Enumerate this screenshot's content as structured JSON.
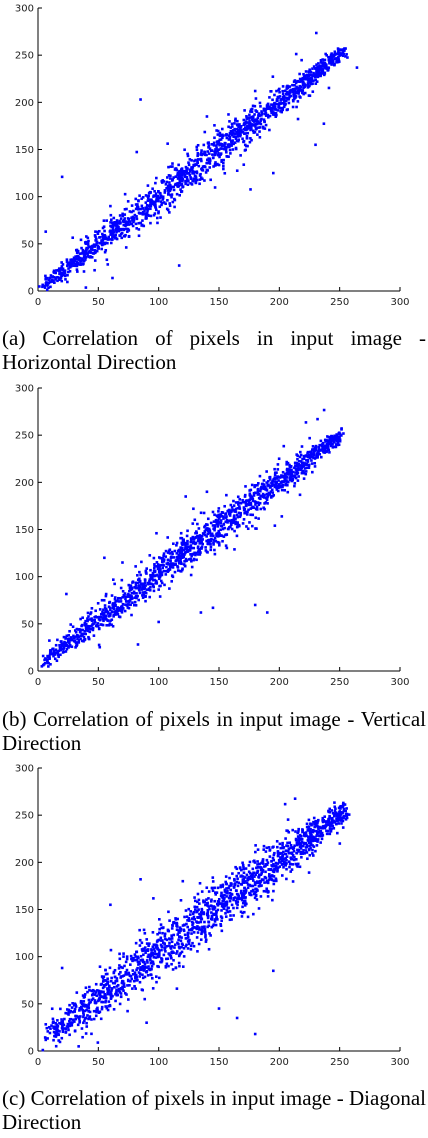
{
  "chart_data": [
    {
      "type": "scatter",
      "caption": "(a) Correlation of pixels in input image - Horizontal Direction",
      "xlim": [
        0,
        300
      ],
      "ylim": [
        0,
        300
      ],
      "x_ticks": [
        "0",
        "50",
        "100",
        "150",
        "200",
        "250",
        "300"
      ],
      "y_ticks": [
        "0",
        "50",
        "100",
        "150",
        "200",
        "250",
        "300"
      ],
      "grid": false,
      "marker_color": "#0000ff",
      "trend": {
        "from": [
          5,
          5
        ],
        "to": [
          255,
          255
        ]
      },
      "spread": 6,
      "outliers": [
        [
          85,
          203
        ],
        [
          20,
          121
        ],
        [
          117,
          27
        ],
        [
          195,
          125
        ],
        [
          230,
          155
        ],
        [
          180,
          212
        ],
        [
          60,
          90
        ],
        [
          140,
          185
        ]
      ],
      "n_points": 1400
    },
    {
      "type": "scatter",
      "caption": "(b) Correlation of pixels in input image - Vertical Direction",
      "xlim": [
        0,
        300
      ],
      "ylim": [
        0,
        300
      ],
      "x_ticks": [
        "0",
        "50",
        "100",
        "150",
        "200",
        "250",
        "300"
      ],
      "y_ticks": [
        "0",
        "50",
        "100",
        "150",
        "200",
        "250",
        "300"
      ],
      "grid": false,
      "marker_color": "#0000ff",
      "trend": {
        "from": [
          5,
          10
        ],
        "to": [
          250,
          250
        ]
      },
      "spread": 6,
      "outliers": [
        [
          145,
          67
        ],
        [
          180,
          70
        ],
        [
          190,
          62
        ],
        [
          100,
          52
        ],
        [
          135,
          62
        ],
        [
          55,
          120
        ],
        [
          70,
          115
        ],
        [
          140,
          190
        ]
      ],
      "n_points": 1400
    },
    {
      "type": "scatter",
      "caption": "(c) Correlation of pixels in input image - Diagonal Direction",
      "xlim": [
        0,
        300
      ],
      "ylim": [
        0,
        300
      ],
      "x_ticks": [
        "0",
        "50",
        "100",
        "150",
        "200",
        "250",
        "300"
      ],
      "y_ticks": [
        "0",
        "50",
        "100",
        "150",
        "200",
        "250",
        "300"
      ],
      "grid": false,
      "marker_color": "#0000ff",
      "trend": {
        "from": [
          8,
          15
        ],
        "to": [
          255,
          255
        ]
      },
      "spread": 9,
      "outliers": [
        [
          195,
          85
        ],
        [
          180,
          18
        ],
        [
          165,
          35
        ],
        [
          85,
          182
        ],
        [
          120,
          180
        ],
        [
          175,
          190
        ],
        [
          20,
          88
        ],
        [
          150,
          45
        ],
        [
          60,
          155
        ],
        [
          90,
          30
        ]
      ],
      "n_points": 1500
    }
  ]
}
